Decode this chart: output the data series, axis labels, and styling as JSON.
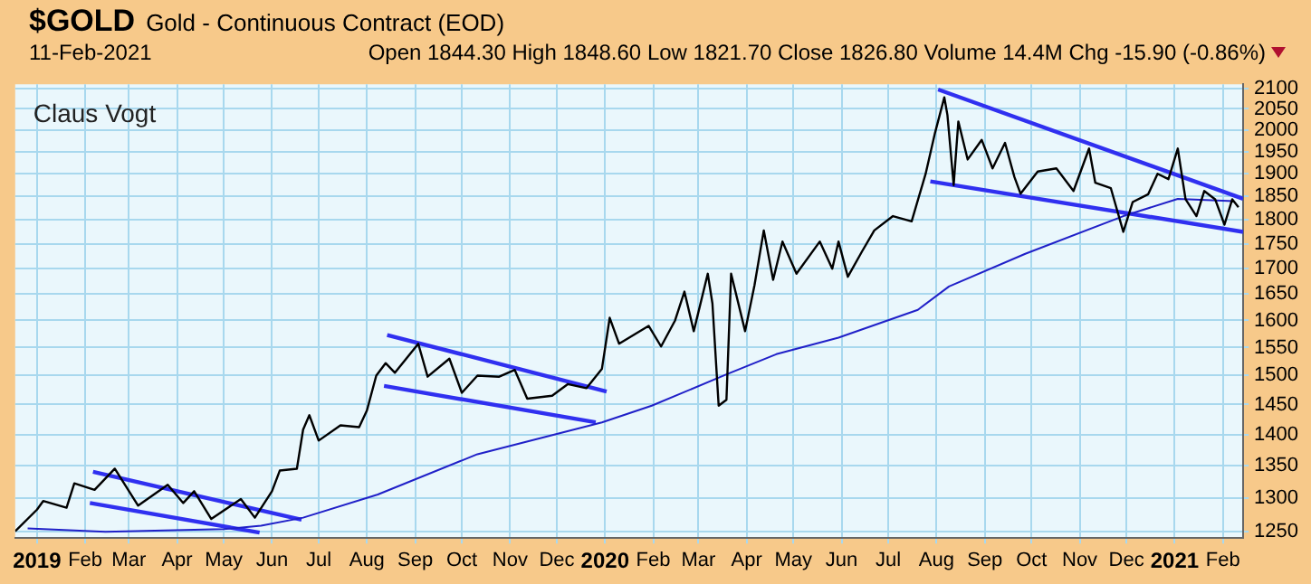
{
  "chart_data": {
    "type": "line",
    "title": "$GOLD",
    "subtitle": "Gold - Continuous Contract (EOD)",
    "annotations": [
      "11-Feb-2021",
      "Open 1844.30 High 1848.60 Low 1821.70 Close 1826.80 Volume 14.4M Chg -15.90 (-0.86%)",
      "Claus Vogt"
    ],
    "series": [
      {
        "color": "#000000",
        "x": [
          "2018-12-18",
          "2019-01-01",
          "2019-01-05",
          "2019-01-20",
          "2019-01-25",
          "2019-02-07",
          "2019-02-20",
          "2019-03-07",
          "2019-03-26",
          "2019-04-05",
          "2019-04-12",
          "2019-04-23",
          "2019-05-12",
          "2019-05-21",
          "2019-06-01",
          "2019-06-06",
          "2019-06-17",
          "2019-06-21",
          "2019-06-25",
          "2019-07-01",
          "2019-07-15",
          "2019-07-27",
          "2019-08-01",
          "2019-08-07",
          "2019-08-13",
          "2019-08-19",
          "2019-09-03",
          "2019-09-09",
          "2019-09-23",
          "2019-10-01",
          "2019-10-11",
          "2019-10-25",
          "2019-11-04",
          "2019-11-12",
          "2019-11-28",
          "2019-12-08",
          "2019-12-20",
          "2019-12-30",
          "2020-01-04",
          "2020-01-10",
          "2020-01-29",
          "2020-02-06",
          "2020-02-15",
          "2020-02-21",
          "2020-02-27",
          "2020-03-07",
          "2020-03-10",
          "2020-03-14",
          "2020-03-19",
          "2020-03-22",
          "2020-03-31",
          "2020-04-06",
          "2020-04-12",
          "2020-04-18",
          "2020-04-24",
          "2020-05-03",
          "2020-05-18",
          "2020-05-26",
          "2020-05-30",
          "2020-06-05",
          "2020-06-14",
          "2020-06-22",
          "2020-07-04",
          "2020-07-16",
          "2020-07-25",
          "2020-07-31",
          "2020-08-06",
          "2020-08-08",
          "2020-08-12",
          "2020-08-15",
          "2020-08-21",
          "2020-08-30",
          "2020-09-06",
          "2020-09-14",
          "2020-09-20",
          "2020-09-24",
          "2020-10-05",
          "2020-10-17",
          "2020-10-28",
          "2020-11-07",
          "2020-11-11",
          "2020-11-21",
          "2020-11-29",
          "2020-12-05",
          "2020-12-15",
          "2020-12-21",
          "2020-12-28",
          "2021-01-03",
          "2021-01-08",
          "2021-01-15",
          "2021-01-20",
          "2021-01-27",
          "2021-02-02",
          "2021-02-07",
          "2021-02-11"
        ],
        "values": [
          1250,
          1282,
          1295,
          1285,
          1322,
          1312,
          1345,
          1288,
          1320,
          1292,
          1310,
          1268,
          1298,
          1270,
          1310,
          1342,
          1345,
          1408,
          1432,
          1390,
          1415,
          1412,
          1440,
          1500,
          1522,
          1505,
          1557,
          1498,
          1530,
          1470,
          1500,
          1498,
          1510,
          1460,
          1465,
          1485,
          1478,
          1512,
          1605,
          1557,
          1590,
          1552,
          1600,
          1655,
          1580,
          1690,
          1632,
          1448,
          1458,
          1690,
          1580,
          1667,
          1778,
          1678,
          1755,
          1690,
          1755,
          1700,
          1755,
          1684,
          1734,
          1778,
          1808,
          1797,
          1900,
          1993,
          2078,
          2035,
          1875,
          2020,
          1932,
          1977,
          1912,
          1970,
          1893,
          1856,
          1905,
          1912,
          1862,
          1957,
          1880,
          1868,
          1775,
          1838,
          1855,
          1900,
          1888,
          1957,
          1844,
          1808,
          1862,
          1844,
          1790,
          1844,
          1827
        ]
      },
      {
        "color": "#2020c8",
        "x": [
          "2018-12-26",
          "2019-02-14",
          "2019-05-01",
          "2019-05-25",
          "2019-06-21",
          "2019-08-08",
          "2019-10-11",
          "2019-12-30",
          "2020-01-31",
          "2020-03-19",
          "2020-04-20",
          "2020-05-30",
          "2020-07-20",
          "2020-08-09",
          "2020-09-27",
          "2020-11-29",
          "2021-01-03",
          "2021-02-08"
        ],
        "values": [
          1254,
          1249,
          1253,
          1258,
          1270,
          1305,
          1368,
          1420,
          1448,
          1502,
          1538,
          1568,
          1620,
          1665,
          1730,
          1808,
          1845,
          1840
        ]
      },
      {
        "color": "#3030f0",
        "x": [
          "2019-02-06",
          "2019-06-20"
        ],
        "values": [
          1340,
          1267
        ]
      },
      {
        "color": "#3030f0",
        "x": [
          "2019-02-04",
          "2019-05-24"
        ],
        "values": [
          1292,
          1248
        ]
      },
      {
        "color": "#3030f0",
        "x": [
          "2019-08-14",
          "2020-01-02"
        ],
        "values": [
          1573,
          1472
        ]
      },
      {
        "color": "#3030f0",
        "x": [
          "2019-08-12",
          "2019-12-26"
        ],
        "values": [
          1482,
          1420
        ]
      },
      {
        "color": "#3030f0",
        "x": [
          "2020-08-02",
          "2021-02-14"
        ],
        "values": [
          2097,
          1845
        ]
      },
      {
        "color": "#3030f0",
        "x": [
          "2020-07-28",
          "2021-02-14"
        ],
        "values": [
          1883,
          1775
        ]
      }
    ],
    "xlim": [
      "2018-12-18",
      "2021-02-14"
    ],
    "xticks": [
      {
        "value": "2019-01-01",
        "label": "2019"
      },
      {
        "value": "2019-02-01",
        "label": "Feb"
      },
      {
        "value": "2019-03-01",
        "label": "Mar"
      },
      {
        "value": "2019-04-01",
        "label": "Apr"
      },
      {
        "value": "2019-05-01",
        "label": "May"
      },
      {
        "value": "2019-06-01",
        "label": "Jun"
      },
      {
        "value": "2019-07-01",
        "label": "Jul"
      },
      {
        "value": "2019-08-01",
        "label": "Aug"
      },
      {
        "value": "2019-09-01",
        "label": "Sep"
      },
      {
        "value": "2019-10-01",
        "label": "Oct"
      },
      {
        "value": "2019-11-01",
        "label": "Nov"
      },
      {
        "value": "2019-12-01",
        "label": "Dec"
      },
      {
        "value": "2020-01-01",
        "label": "2020"
      },
      {
        "value": "2020-02-01",
        "label": "Feb"
      },
      {
        "value": "2020-03-01",
        "label": "Mar"
      },
      {
        "value": "2020-04-01",
        "label": "Apr"
      },
      {
        "value": "2020-05-01",
        "label": "May"
      },
      {
        "value": "2020-06-01",
        "label": "Jun"
      },
      {
        "value": "2020-07-01",
        "label": "Jul"
      },
      {
        "value": "2020-08-01",
        "label": "Aug"
      },
      {
        "value": "2020-09-01",
        "label": "Sep"
      },
      {
        "value": "2020-10-01",
        "label": "Oct"
      },
      {
        "value": "2020-11-01",
        "label": "Nov"
      },
      {
        "value": "2020-12-01",
        "label": "Dec"
      },
      {
        "value": "2021-01-01",
        "label": "2021"
      },
      {
        "value": "2021-02-01",
        "label": "Feb"
      }
    ],
    "ylim": [
      1240,
      2110
    ],
    "log": true,
    "yticks": [
      1250,
      1300,
      1350,
      1400,
      1450,
      1500,
      1550,
      1600,
      1650,
      1700,
      1750,
      1800,
      1850,
      1900,
      1950,
      2000,
      2050,
      2100
    ],
    "grid": true,
    "legend": false
  }
}
